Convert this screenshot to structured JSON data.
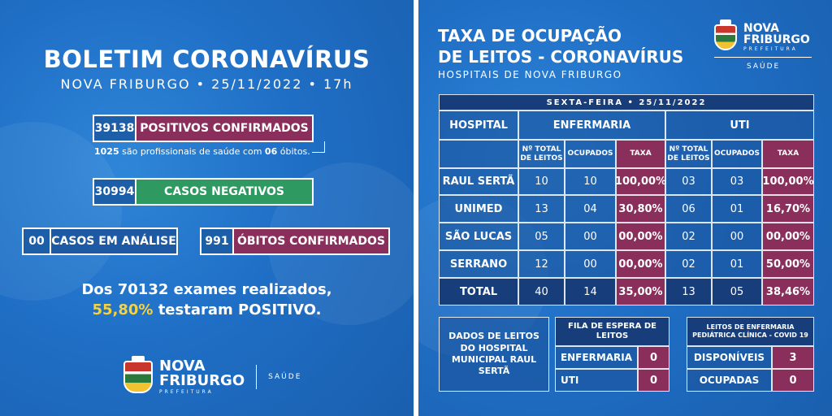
{
  "left": {
    "title": "BOLETIM CORONAVÍRUS",
    "subtitle": "NOVA FRIBURGO • 25/11/2022 • 17h",
    "positivos": {
      "value": "39138",
      "label": "POSITIVOS CONFIRMADOS"
    },
    "profissionais_note": {
      "count": "1025",
      "text": " são profissionais de saúde com ",
      "obitos": "06",
      "suffix": " óbitos."
    },
    "negativos": {
      "value": "30994",
      "label": "CASOS NEGATIVOS"
    },
    "analise": {
      "value": "00",
      "label": "CASOS EM ANÁLISE"
    },
    "obitos": {
      "value": "991",
      "label": "ÓBITOS CONFIRMADOS"
    },
    "exames_line1": "Dos 70132 exames realizados,",
    "exames_pct": "55,80%",
    "exames_line2_rest": " testaram POSITIVO.",
    "logo_line1": "NOVA",
    "logo_line2": "FRIBURGO",
    "logo_pref": "PREFEITURA",
    "logo_saude": "SAÚDE"
  },
  "right": {
    "title_line1": "TAXA DE OCUPAÇÃO",
    "title_line2": "DE LEITOS - CORONAVÍRUS",
    "subtitle": "HOSPITAIS DE NOVA FRIBURGO",
    "logo_line1": "NOVA",
    "logo_line2": "FRIBURGO",
    "logo_pref": "PREFEITURA",
    "logo_saude": "SAÚDE",
    "date_header": "SEXTA-FEIRA • 25/11/2022",
    "col_hospital": "HOSPITAL",
    "col_enfermaria": "ENFERMARIA",
    "col_uti": "UTI",
    "sub_total": "Nº TOTAL\nDE LEITOS",
    "sub_ocupados": "OCUPADOS",
    "sub_taxa": "TAXA",
    "rows": [
      {
        "name": "RAUL SERTÃ",
        "e_total": "10",
        "e_ocup": "10",
        "e_taxa": "100,00%",
        "u_total": "03",
        "u_ocup": "03",
        "u_taxa": "100,00%"
      },
      {
        "name": "UNIMED",
        "e_total": "13",
        "e_ocup": "04",
        "e_taxa": "30,80%",
        "u_total": "06",
        "u_ocup": "01",
        "u_taxa": "16,70%"
      },
      {
        "name": "SÃO LUCAS",
        "e_total": "05",
        "e_ocup": "00",
        "e_taxa": "00,00%",
        "u_total": "02",
        "u_ocup": "00",
        "u_taxa": "00,00%"
      },
      {
        "name": "SERRANO",
        "e_total": "12",
        "e_ocup": "00",
        "e_taxa": "00,00%",
        "u_total": "02",
        "u_ocup": "01",
        "u_taxa": "50,00%"
      },
      {
        "name": "TOTAL",
        "e_total": "40",
        "e_ocup": "14",
        "e_taxa": "35,00%",
        "u_total": "13",
        "u_ocup": "05",
        "u_taxa": "38,46%"
      }
    ],
    "dados_label": "DADOS DE LEITOS DO HOSPITAL MUNICIPAL RAUL SERTÃ",
    "fila_title": "FILA DE ESPERA DE LEITOS",
    "fila_enfermaria": {
      "label": "ENFERMARIA",
      "value": "0"
    },
    "fila_uti": {
      "label": "UTI",
      "value": "0"
    },
    "ped_title": "LEITOS DE ENFERMARIA PEDIÁTRICA CLÍNICA - COVID 19",
    "disponiveis": {
      "label": "DISPONÍVEIS",
      "value": "3"
    },
    "ocupadas": {
      "label": "OCUPADAS",
      "value": "0"
    }
  },
  "colors": {
    "wine": "#8a2f5c",
    "green": "#2e9a62",
    "navy": "#173d7a",
    "yellow": "#f6d23c"
  }
}
